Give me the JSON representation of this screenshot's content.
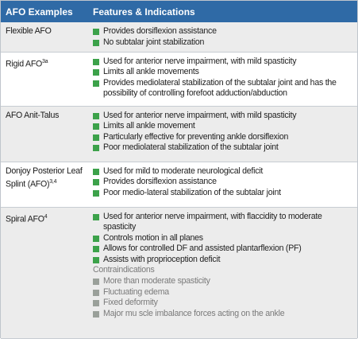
{
  "table": {
    "header": [
      "AFO Examples",
      "Features & Indications"
    ],
    "rows": [
      {
        "name": "Flexible AFO",
        "items": [
          "Provides dorsiflexion assistance",
          "No subtalar joint stabilization"
        ]
      },
      {
        "name": "Rigid AFO",
        "sup": "3a",
        "items": [
          "Used for anterior nerve impairment, with mild spasticity",
          "Limits all ankle movements",
          "Provides mediolateral stabilization of the subtalar joint and has the possibility of controlling forefoot adduction/abduction"
        ]
      },
      {
        "name": "AFO Anit-Talus",
        "items": [
          "Used for anterior nerve impairment, with mild spasticity",
          "Limits all ankle movement",
          "Particularly effective for preventing ankle dorsiflexion",
          "Poor mediolateral stabilization of the subtalar joint"
        ]
      },
      {
        "name": "Donjoy Posterior Leaf Splint (AFO)",
        "sup": "3,4",
        "items": [
          "Used for mild to moderate neurological deficit",
          "Provides dorsiflexion assistance",
          "Poor medio-lateral stabilization of the subtalar joint"
        ]
      },
      {
        "name": "Spiral AFO",
        "sup": "4",
        "items": [
          "Used for anterior nerve impairment, with flaccidity to moderate spasticity",
          "Controls motion in all planes",
          "Allows for controlled DF and assisted plantarflexion (PF)",
          "Assists with proprioception deficit"
        ],
        "contra_label": "Contraindications",
        "contra_items": [
          "More than moderate spasticity",
          "Fluctuating edema",
          "Fixed deformity",
          "Major mu scle imbalance forces acting on the ankle"
        ]
      }
    ]
  }
}
